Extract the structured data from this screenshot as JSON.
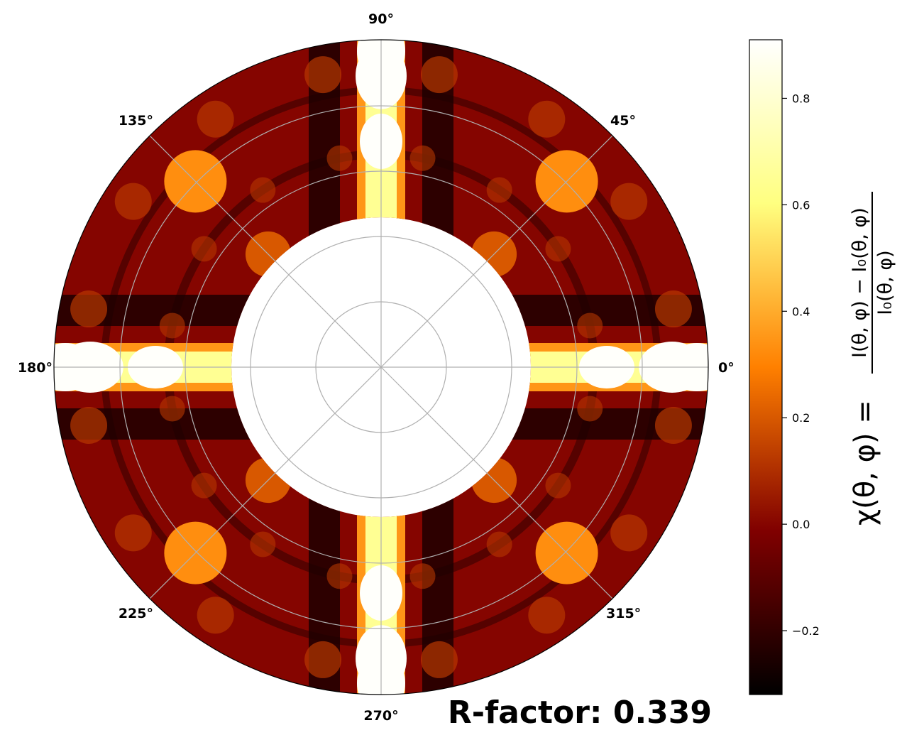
{
  "chart_data": {
    "type": "heatmap",
    "projection": "polar",
    "theta_ticks": [
      "0°",
      "45°",
      "90°",
      "135°",
      "180°",
      "225°",
      "270°",
      "315°"
    ],
    "radial_grid": "on",
    "colormap": "afmhot",
    "colorbar": {
      "range": [
        -0.32,
        0.91
      ],
      "ticks": [
        -0.2,
        0.0,
        0.2,
        0.4,
        0.6,
        0.8
      ],
      "tick_labels": [
        "−0.2",
        "0.0",
        "0.2",
        "0.4",
        "0.6",
        "0.8"
      ],
      "label": {
        "lhs": "χ(θ, φ) =",
        "numerator": "I(θ, φ) − I₀(θ, φ)",
        "denominator": "I₀(θ, φ)"
      }
    },
    "annotation": "R-factor: 0.339",
    "features": {
      "baseline_value": 0.0,
      "axial_streaks_at_deg": [
        0,
        90,
        180,
        270
      ],
      "axial_streak_peak": 0.9,
      "diagonal_spots_at_deg": [
        45,
        135,
        225,
        315
      ],
      "diagonal_spot_value": 0.33,
      "dark_bands_value": -0.25
    }
  },
  "colors": {
    "grid": "#b0b0b0",
    "background": "#ffffff"
  }
}
